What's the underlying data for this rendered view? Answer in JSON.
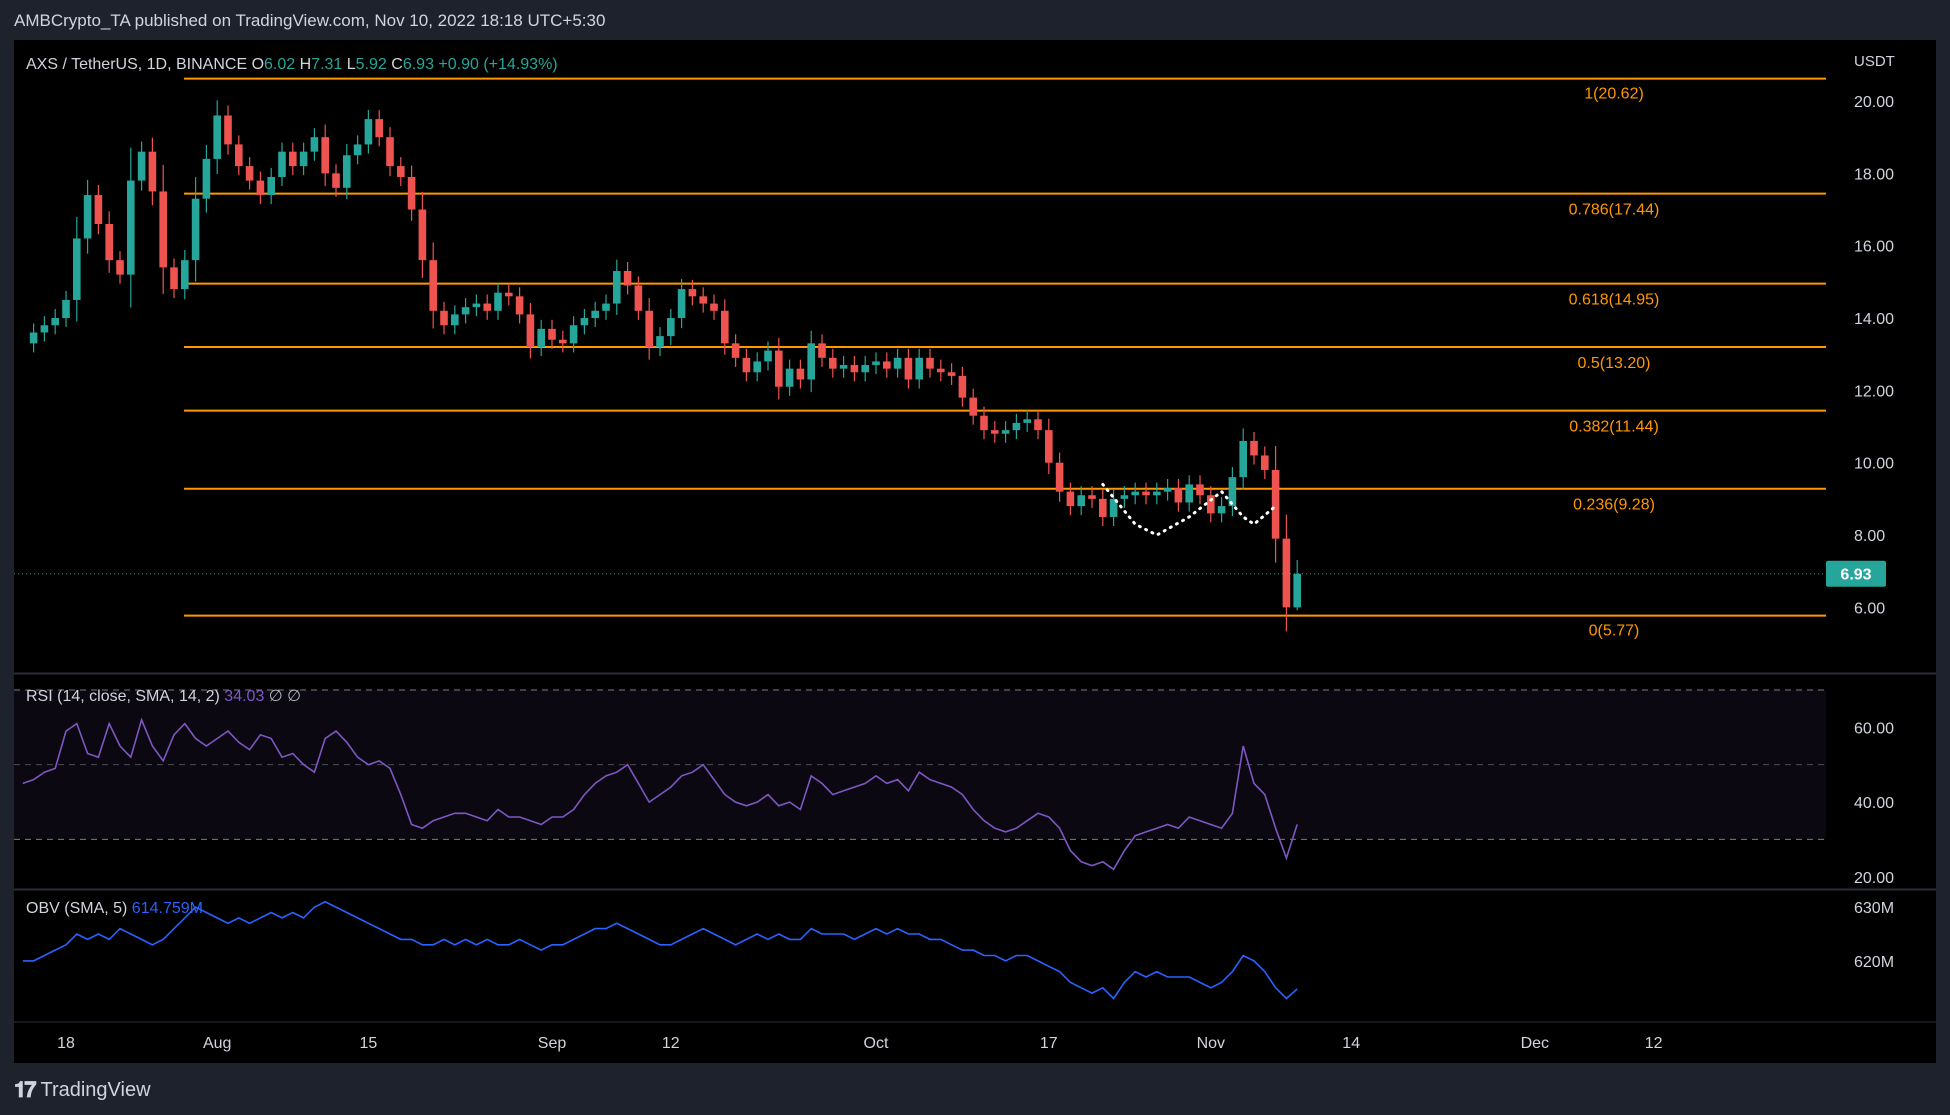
{
  "header": {
    "publisher_line": "AMBCrypto_TA published on TradingView.com, Nov 10, 2022 18:18 UTC+5:30"
  },
  "footer": {
    "brand": "TradingView",
    "logo_icon": "tradingview-logo-icon"
  },
  "colors": {
    "bull": "#26a69a",
    "bear": "#ef5350",
    "fib": "#ff9800",
    "rsi": "#7e57c2",
    "obv": "#2962ff",
    "price_tag_bg": "#26a69a"
  },
  "chart_data": [
    {
      "type": "candlestick",
      "title": "AXS / TetherUS, 1D, BINANCE",
      "symbol_parts": {
        "pair": "AXS / TetherUS",
        "interval": "1D",
        "exchange": "BINANCE"
      },
      "ohlc_header": {
        "o_label": "O",
        "o": "6.02",
        "h_label": "H",
        "h": "7.31",
        "l_label": "L",
        "l": "5.92",
        "c_label": "C",
        "c": "6.93",
        "change": "+0.90 (+14.93%)"
      },
      "currency": "USDT",
      "last_price": "6.93",
      "ylim": [
        4.6,
        21.3
      ],
      "y_ticks": [
        6,
        8,
        10,
        12,
        14,
        16,
        18,
        20
      ],
      "y_tick_labels": [
        "6.00",
        "8.00",
        "10.00",
        "12.00",
        "14.00",
        "16.00",
        "18.00",
        "20.00"
      ],
      "x_ticks": [
        {
          "label": "18",
          "day": 0
        },
        {
          "label": "Aug",
          "day": 14
        },
        {
          "label": "15",
          "day": 28
        },
        {
          "label": "Sep",
          "day": 45
        },
        {
          "label": "12",
          "day": 56
        },
        {
          "label": "Oct",
          "day": 75
        },
        {
          "label": "17",
          "day": 91
        },
        {
          "label": "Nov",
          "day": 106
        },
        {
          "label": "14",
          "day": 119
        },
        {
          "label": "Dec",
          "day": 136
        },
        {
          "label": "12",
          "day": 147
        }
      ],
      "fib_levels": [
        {
          "ratio": "1",
          "price": 20.62,
          "label": "1(20.62)"
        },
        {
          "ratio": "0.786",
          "price": 17.44,
          "label": "0.786(17.44)"
        },
        {
          "ratio": "0.618",
          "price": 14.95,
          "label": "0.618(14.95)"
        },
        {
          "ratio": "0.5",
          "price": 13.2,
          "label": "0.5(13.20)"
        },
        {
          "ratio": "0.382",
          "price": 11.44,
          "label": "0.382(11.44)"
        },
        {
          "ratio": "0.236",
          "price": 9.28,
          "label": "0.236(9.28)"
        },
        {
          "ratio": "0",
          "price": 5.77,
          "label": "0(5.77)"
        }
      ],
      "close_series_start_day": -4,
      "close_series": [
        13.3,
        13.6,
        13.8,
        14.0,
        14.5,
        16.2,
        17.4,
        16.6,
        15.6,
        15.2,
        17.8,
        18.6,
        17.5,
        15.4,
        14.8,
        15.6,
        17.3,
        18.4,
        19.6,
        18.8,
        18.2,
        17.8,
        17.4,
        17.9,
        18.6,
        18.2,
        18.6,
        19.0,
        18.0,
        17.6,
        18.5,
        18.8,
        19.5,
        19.0,
        18.2,
        17.9,
        17.0,
        15.6,
        14.2,
        13.8,
        14.1,
        14.3,
        14.4,
        14.2,
        14.7,
        14.6,
        14.1,
        13.2,
        13.7,
        13.4,
        13.3,
        13.8,
        14.0,
        14.2,
        14.4,
        15.3,
        14.9,
        14.2,
        13.2,
        13.5,
        14.0,
        14.8,
        14.6,
        14.4,
        14.2,
        13.3,
        12.9,
        12.5,
        12.8,
        13.1,
        12.1,
        12.6,
        12.3,
        13.3,
        12.9,
        12.6,
        12.7,
        12.5,
        12.7,
        12.8,
        12.6,
        12.9,
        12.3,
        12.9,
        12.6,
        12.5,
        12.4,
        11.8,
        11.3,
        10.9,
        10.8,
        10.9,
        11.1,
        11.2,
        10.9,
        10.0,
        9.2,
        8.8,
        9.1,
        9.0,
        8.5,
        9.0,
        9.1,
        9.2,
        9.1,
        9.2,
        9.3,
        8.9,
        9.4,
        9.1,
        8.6,
        8.8,
        9.6,
        10.6,
        10.2,
        9.8,
        7.9,
        6.0,
        6.93
      ],
      "double_bottom_dots": true
    },
    {
      "type": "line",
      "title": "RSI (14, close, SMA, 14, 2)",
      "value_label": "34.03",
      "ylim": [
        17,
        74
      ],
      "band": [
        30,
        70
      ],
      "mid": 50,
      "y_ticks": [
        20,
        40,
        60
      ],
      "y_tick_labels": [
        "20.00",
        "40.00",
        "60.00"
      ],
      "series": [
        45,
        46,
        48,
        49,
        59,
        61,
        53,
        52,
        61,
        55,
        52,
        62,
        55,
        51,
        58,
        61,
        57,
        55,
        57,
        59,
        56,
        54,
        58,
        57,
        52,
        53,
        50,
        48,
        57,
        59,
        56,
        52,
        50,
        51,
        49,
        42,
        34,
        33,
        35,
        36,
        37,
        37,
        36,
        35,
        38,
        36,
        36,
        35,
        34,
        36,
        36,
        38,
        42,
        45,
        47,
        48,
        50,
        45,
        40,
        42,
        44,
        47,
        48,
        50,
        46,
        42,
        40,
        39,
        40,
        42,
        39,
        40,
        38,
        47,
        45,
        42,
        43,
        44,
        45,
        47,
        45,
        46,
        43,
        48,
        46,
        45,
        44,
        42,
        38,
        35,
        33,
        32,
        33,
        35,
        37,
        36,
        33,
        27,
        24,
        23,
        24,
        22,
        27,
        31,
        32,
        33,
        34,
        33,
        36,
        35,
        34,
        33,
        37,
        55,
        45,
        42,
        33,
        25,
        34.03
      ],
      "series_start_day": -4
    },
    {
      "type": "line",
      "title": "OBV (SMA, 5)",
      "value_label": "614.759M",
      "ylim": [
        609,
        633
      ],
      "y_ticks": [
        620,
        630
      ],
      "y_tick_labels": [
        "620M",
        "630M"
      ],
      "series": [
        620,
        620,
        621,
        622,
        623,
        625,
        624,
        625,
        624,
        626,
        625,
        624,
        623,
        624,
        626,
        628,
        630,
        629,
        628,
        627,
        628,
        627,
        628,
        629,
        628,
        629,
        628,
        630,
        631,
        630,
        629,
        628,
        627,
        626,
        625,
        624,
        624,
        623,
        623,
        624,
        623,
        624,
        623,
        624,
        623,
        623,
        624,
        623,
        622,
        623,
        623,
        624,
        625,
        626,
        626,
        627,
        626,
        625,
        624,
        623,
        623,
        624,
        625,
        626,
        625,
        624,
        623,
        624,
        625,
        624,
        625,
        624,
        624,
        626,
        625,
        625,
        625,
        624,
        625,
        626,
        625,
        626,
        625,
        625,
        624,
        624,
        623,
        622,
        622,
        621,
        621,
        620,
        621,
        621,
        620,
        619,
        618,
        616,
        615,
        614,
        615,
        613,
        616,
        618,
        617,
        618,
        617,
        617,
        617,
        616,
        615,
        616,
        618,
        621,
        620,
        618,
        615,
        613,
        614.759
      ],
      "series_start_day": -4
    }
  ]
}
